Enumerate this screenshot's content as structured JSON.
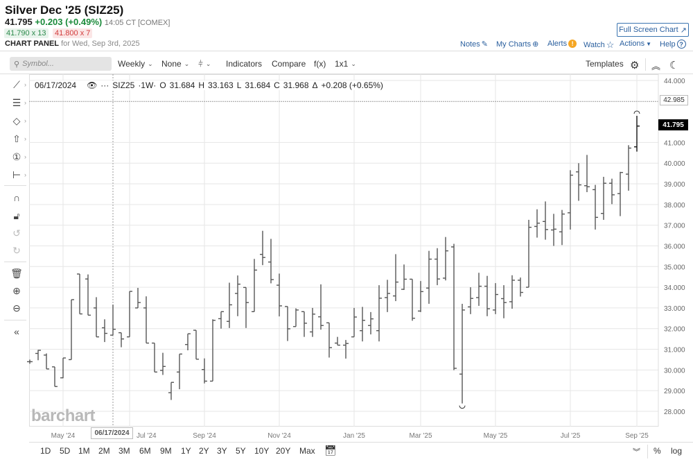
{
  "header": {
    "title": "Silver Dec '25 (SIZ25)",
    "last": "41.795",
    "change": "+0.203 (+0.49%)",
    "time": "14:05 CT [COMEX]",
    "bid": "41.790 x 13",
    "ask": "41.800 x 7",
    "panel_label": "CHART PANEL",
    "panel_date": "for Wed, Sep 3rd, 2025"
  },
  "links": {
    "fullscreen": "Full Screen Chart",
    "notes": "Notes",
    "mycharts": "My Charts",
    "alerts": "Alerts",
    "watch": "Watch",
    "actions": "Actions",
    "help": "Help"
  },
  "toolbar": {
    "search_placeholder": "Symbol...",
    "interval": "Weekly",
    "aggregation": "None",
    "indicators": "Indicators",
    "compare": "Compare",
    "fx": "f(x)",
    "layout": "1x1",
    "templates": "Templates"
  },
  "infobar": {
    "date": "06/17/2024",
    "symbol": "SIZ25",
    "period": "·1W·",
    "o_label": "O",
    "o": "31.684",
    "h_label": "H",
    "h": "33.163",
    "l_label": "L",
    "l": "31.684",
    "c_label": "C",
    "c": "31.968",
    "delta_label": "Δ",
    "delta": "+0.208 (+0.65%)"
  },
  "axis": {
    "last_price_label": "41.795",
    "reference_label": "42.985",
    "crosshair_date": "06/17/2024"
  },
  "watermark": "barchart",
  "ranges": [
    "1D",
    "5D",
    "1M",
    "2M",
    "3M",
    "6M",
    "9M",
    "1Y",
    "2Y",
    "3Y",
    "5Y",
    "10Y",
    "20Y",
    "Max"
  ],
  "bottom_right": {
    "pct": "%",
    "log": "log"
  },
  "colors": {
    "up": "#1a8a3a",
    "down": "#d23b3b",
    "link": "#2a5f9e",
    "bar": "#555555",
    "last_bar": "#111111"
  },
  "chart_data": {
    "type": "ohlc",
    "interval": "weekly",
    "ylim": [
      28,
      44
    ],
    "y_ticks": [
      "28.000",
      "29.000",
      "30.000",
      "31.000",
      "32.000",
      "33.000",
      "34.000",
      "35.000",
      "36.000",
      "37.000",
      "38.000",
      "39.000",
      "40.000",
      "41.000",
      "44.000"
    ],
    "x_ticks": [
      {
        "label": "May '24",
        "date": "2024-05-06"
      },
      {
        "label": "Jul '24",
        "date": "2024-07-01"
      },
      {
        "label": "Sep '24",
        "date": "2024-09-02"
      },
      {
        "label": "Nov '24",
        "date": "2024-11-04"
      },
      {
        "label": "Jan '25",
        "date": "2025-01-06"
      },
      {
        "label": "Mar '25",
        "date": "2025-03-03"
      },
      {
        "label": "May '25",
        "date": "2025-05-05"
      },
      {
        "label": "Jul '25",
        "date": "2025-07-07"
      },
      {
        "label": "Sep '25",
        "date": "2025-09-01"
      }
    ],
    "reference_line": 42.985,
    "last_price": 41.795,
    "bars_columns": [
      "date",
      "open",
      "high",
      "low",
      "close"
    ],
    "bars": [
      [
        "2024-04-08",
        30.4,
        30.5,
        30.3,
        30.4
      ],
      [
        "2024-04-15",
        30.8,
        30.97,
        30.47,
        30.95
      ],
      [
        "2024-04-22",
        30.72,
        30.8,
        30.05,
        30.05
      ],
      [
        "2024-04-29",
        30.15,
        30.15,
        29.2,
        29.2
      ],
      [
        "2024-05-06",
        29.62,
        30.58,
        29.6,
        30.58
      ],
      [
        "2024-05-13",
        30.5,
        33.4,
        30.5,
        33.4
      ],
      [
        "2024-05-20",
        34.64,
        34.64,
        32.71,
        32.71
      ],
      [
        "2024-05-27",
        34.4,
        34.62,
        32.65,
        32.65
      ],
      [
        "2024-06-03",
        33.0,
        33.52,
        31.6,
        31.6
      ],
      [
        "2024-06-10",
        32.04,
        32.45,
        31.35,
        31.77
      ],
      [
        "2024-06-17",
        31.684,
        33.163,
        31.684,
        31.968
      ],
      [
        "2024-06-24",
        31.8,
        31.8,
        31.1,
        31.5
      ],
      [
        "2024-07-01",
        31.6,
        33.8,
        31.6,
        33.8
      ],
      [
        "2024-07-08",
        33.0,
        33.97,
        33.0,
        33.26
      ],
      [
        "2024-07-15",
        33.0,
        33.56,
        31.3,
        31.3
      ],
      [
        "2024-07-22",
        31.3,
        31.3,
        29.9,
        29.9
      ],
      [
        "2024-07-29",
        29.98,
        30.83,
        29.76,
        30.17
      ],
      [
        "2024-08-05",
        28.9,
        29.4,
        28.55,
        29.4
      ],
      [
        "2024-08-12",
        29.9,
        30.77,
        29.07,
        30.77
      ],
      [
        "2024-08-19",
        31.23,
        31.75,
        30.95,
        31.75
      ],
      [
        "2024-08-26",
        31.92,
        31.92,
        30.52,
        30.52
      ],
      [
        "2024-09-02",
        30.02,
        30.56,
        29.35,
        29.46
      ],
      [
        "2024-09-09",
        29.46,
        32.45,
        29.46,
        32.4
      ],
      [
        "2024-09-16",
        32.48,
        32.82,
        32.0,
        32.82
      ],
      [
        "2024-09-23",
        32.35,
        34.22,
        32.03,
        33.15
      ],
      [
        "2024-09-30",
        33.7,
        34.57,
        32.6,
        34.15
      ],
      [
        "2024-10-07",
        33.99,
        33.99,
        32.03,
        33.26
      ],
      [
        "2024-10-14",
        32.82,
        35.37,
        32.82,
        34.83
      ],
      [
        "2024-10-21",
        35.59,
        36.73,
        35.07,
        35.44
      ],
      [
        "2024-10-28",
        35.22,
        36.34,
        34.19,
        34.37
      ],
      [
        "2024-11-04",
        34.1,
        34.66,
        32.59,
        33.1
      ],
      [
        "2024-11-11",
        33.07,
        33.07,
        31.4,
        31.99
      ],
      [
        "2024-11-18",
        32.1,
        32.98,
        32.1,
        32.9
      ],
      [
        "2024-11-25",
        32.82,
        32.82,
        31.6,
        32.26
      ],
      [
        "2024-12-02",
        31.84,
        33.0,
        31.6,
        32.7
      ],
      [
        "2024-12-09",
        32.57,
        34.14,
        31.95,
        32.15
      ],
      [
        "2024-12-16",
        32.28,
        32.28,
        30.6,
        31.08
      ],
      [
        "2024-12-23",
        31.3,
        31.6,
        31.2,
        31.2
      ],
      [
        "2024-12-30",
        31.2,
        31.45,
        30.55,
        31.28
      ],
      [
        "2025-01-06",
        31.6,
        33.0,
        31.6,
        32.56
      ],
      [
        "2025-01-13",
        31.9,
        33.05,
        31.38,
        32.4
      ],
      [
        "2025-01-20",
        32.15,
        32.8,
        31.72,
        32.47
      ],
      [
        "2025-01-27",
        31.9,
        34.1,
        31.38,
        33.47
      ],
      [
        "2025-02-03",
        33.5,
        34.36,
        32.8,
        33.7
      ],
      [
        "2025-02-10",
        33.58,
        35.6,
        33.33,
        34.25
      ],
      [
        "2025-02-17",
        33.9,
        35.1,
        33.87,
        34.39
      ],
      [
        "2025-02-24",
        34.39,
        34.39,
        32.38,
        32.5
      ],
      [
        "2025-03-03",
        32.85,
        34.3,
        32.8,
        33.79
      ],
      [
        "2025-03-10",
        33.96,
        35.76,
        33.2,
        35.36
      ],
      [
        "2025-03-17",
        35.36,
        35.89,
        34.1,
        34.4
      ],
      [
        "2025-03-24",
        34.44,
        36.43,
        34.33,
        35.76
      ],
      [
        "2025-03-31",
        35.95,
        36.1,
        29.99,
        30.08
      ],
      [
        "2025-04-07",
        29.8,
        33.2,
        28.38,
        32.9
      ],
      [
        "2025-04-14",
        33.05,
        34.0,
        32.7,
        33.46
      ],
      [
        "2025-04-21",
        33.5,
        34.7,
        33.1,
        34.05
      ],
      [
        "2025-04-28",
        34.05,
        34.55,
        32.6,
        32.96
      ],
      [
        "2025-05-05",
        32.9,
        34.2,
        32.7,
        33.65
      ],
      [
        "2025-05-12",
        33.45,
        34.1,
        32.5,
        33.26
      ],
      [
        "2025-05-19",
        33.3,
        34.58,
        32.96,
        34.34
      ],
      [
        "2025-05-26",
        34.34,
        34.47,
        33.55,
        33.75
      ],
      [
        "2025-06-02",
        34.0,
        37.26,
        34.0,
        36.9
      ],
      [
        "2025-06-09",
        36.94,
        37.77,
        36.4,
        37.1
      ],
      [
        "2025-06-16",
        37.18,
        38.15,
        36.3,
        36.79
      ],
      [
        "2025-06-23",
        36.77,
        37.55,
        36.0,
        36.81
      ],
      [
        "2025-06-30",
        36.68,
        37.74,
        36.04,
        37.54
      ],
      [
        "2025-07-07",
        37.6,
        39.66,
        36.79,
        39.42
      ],
      [
        "2025-07-14",
        39.58,
        40.0,
        38.18,
        38.95
      ],
      [
        "2025-07-21",
        38.91,
        40.4,
        38.6,
        38.86
      ],
      [
        "2025-07-28",
        38.72,
        38.95,
        36.79,
        37.38
      ],
      [
        "2025-08-04",
        37.57,
        39.34,
        37.26,
        39.03
      ],
      [
        "2025-08-11",
        39.03,
        39.25,
        38.02,
        38.47
      ],
      [
        "2025-08-18",
        38.53,
        39.58,
        37.44,
        39.55
      ],
      [
        "2025-08-25",
        39.47,
        40.87,
        38.67,
        40.73
      ],
      [
        "2025-09-01",
        40.79,
        42.29,
        40.56,
        41.795
      ]
    ]
  }
}
